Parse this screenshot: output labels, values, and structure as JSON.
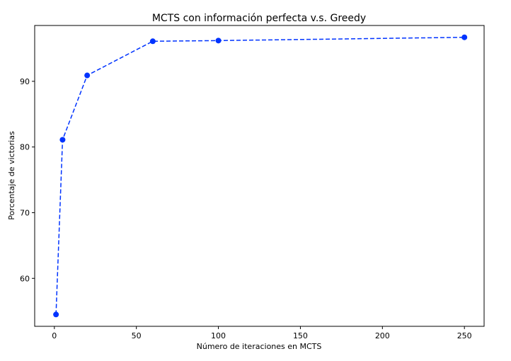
{
  "chart_data": {
    "type": "line",
    "title": "MCTS con información perfecta v.s. Greedy",
    "xlabel": "Número de iteraciones en MCTS",
    "ylabel": "Porcentaje de victorias",
    "xlim": [
      -12,
      262
    ],
    "ylim": [
      52.7,
      98.5
    ],
    "xticks": [
      0,
      50,
      100,
      150,
      200,
      250
    ],
    "yticks": [
      60,
      70,
      80,
      90
    ],
    "grid": false,
    "legend": "none",
    "series": [
      {
        "color": "#0033ff",
        "line_style": "dashed",
        "marker": "circle",
        "points": [
          {
            "x": 1,
            "y": 54.5
          },
          {
            "x": 5,
            "y": 81.1
          },
          {
            "x": 20,
            "y": 90.9
          },
          {
            "x": 60,
            "y": 96.1
          },
          {
            "x": 100,
            "y": 96.2
          },
          {
            "x": 250,
            "y": 96.7
          }
        ]
      }
    ]
  }
}
